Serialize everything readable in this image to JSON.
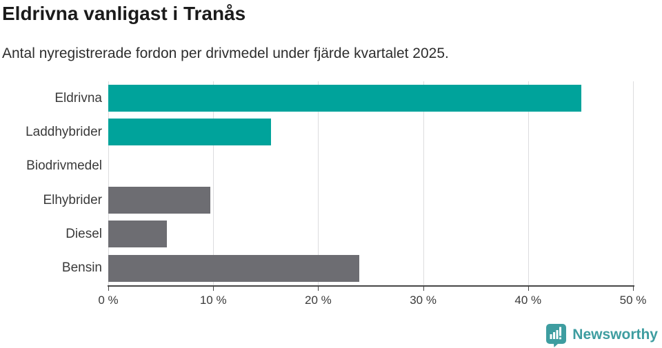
{
  "header": {
    "title": "Eldrivna vanligast i Tranås",
    "subtitle": "Antal nyregistrerade fordon per drivmedel under fjärde kvartalet 2025."
  },
  "chart_data": {
    "type": "bar",
    "orientation": "horizontal",
    "title": "Eldrivna vanligast i Tranås",
    "subtitle": "Antal nyregistrerade fordon per drivmedel under fjärde kvartalet 2025.",
    "categories": [
      "Eldrivna",
      "Laddhybrider",
      "Biodrivmedel",
      "Elhybrider",
      "Diesel",
      "Bensin"
    ],
    "values": [
      45.1,
      15.5,
      0,
      9.7,
      5.6,
      23.9
    ],
    "unit": "%",
    "bar_colors": [
      "#00a39b",
      "#00a39b",
      "#00a39b",
      "#6d6d72",
      "#6d6d72",
      "#6d6d72"
    ],
    "highlight_color": "#00a39b",
    "default_color": "#6d6d72",
    "xlim": [
      0,
      50
    ],
    "x_ticks": [
      0,
      10,
      20,
      30,
      40,
      50
    ],
    "x_tick_labels": [
      "0 %",
      "10 %",
      "20 %",
      "30 %",
      "40 %",
      "50 %"
    ],
    "grid": "vertical-gridlines",
    "legend": "none"
  },
  "colors": {
    "gridline": "#dcdcde",
    "axis": "#454545",
    "title_text": "#1b1b1b",
    "body_text": "#3a3a3a",
    "brand_teal": "#3e9da0"
  },
  "footer": {
    "brand": "Newsworthy",
    "logo_icon": "bar-chart-speech-bubble-icon"
  }
}
